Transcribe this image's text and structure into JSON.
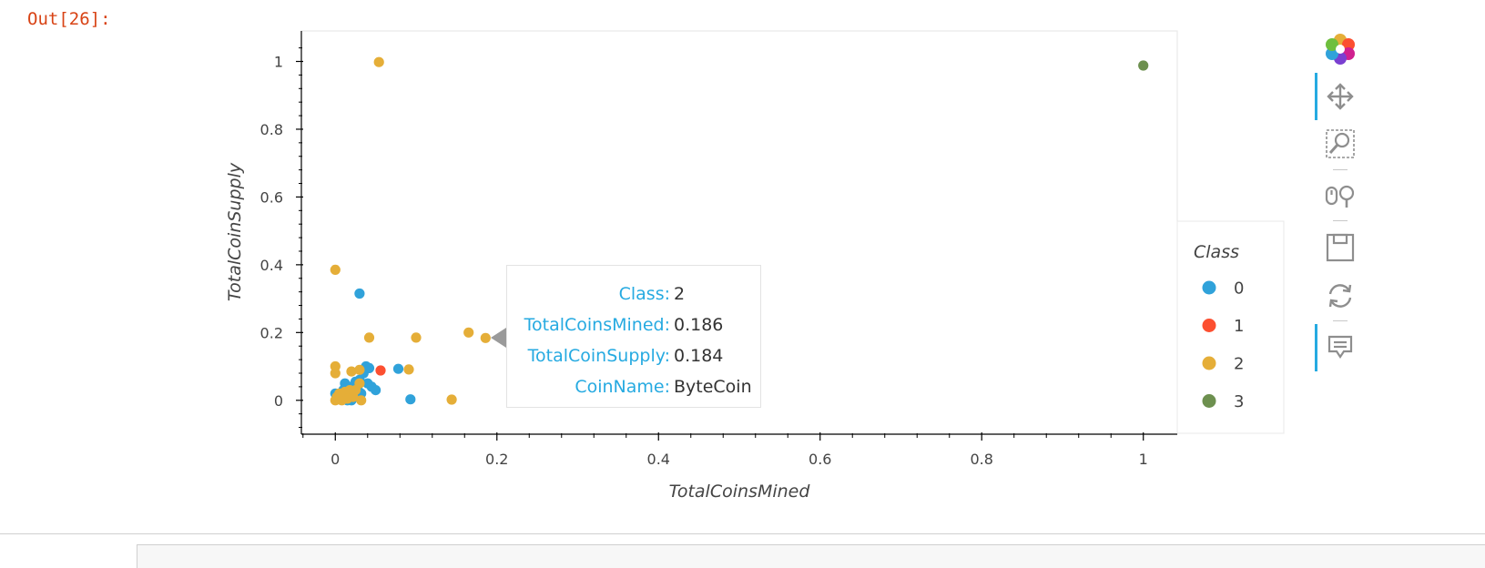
{
  "cell": {
    "prompt": "Out[26]:"
  },
  "chart_data": {
    "type": "scatter",
    "title": "",
    "xlabel": "TotalCoinsMined",
    "ylabel": "TotalCoinSupply",
    "xlim": [
      -0.042,
      1.042
    ],
    "ylim": [
      -0.1,
      1.09
    ],
    "xticks": [
      0,
      0.2,
      0.4,
      0.6,
      0.8,
      1
    ],
    "yticks": [
      0,
      0.2,
      0.4,
      0.6,
      0.8,
      1
    ],
    "xtick_labels": [
      "0",
      "0.2",
      "0.4",
      "0.6",
      "0.8",
      "1"
    ],
    "ytick_labels": [
      "0",
      "0.2",
      "0.4",
      "0.6",
      "0.8",
      "1"
    ],
    "grid": false,
    "legend": {
      "title": "Class",
      "placement": "right"
    },
    "series": [
      {
        "name": "0",
        "color": "#30a2da",
        "points": [
          [
            0.0,
            0.02
          ],
          [
            0.005,
            0.01
          ],
          [
            0.01,
            0.03
          ],
          [
            0.012,
            0.05
          ],
          [
            0.015,
            0.0
          ],
          [
            0.018,
            0.02
          ],
          [
            0.02,
            0.04
          ],
          [
            0.022,
            0.01
          ],
          [
            0.025,
            0.055
          ],
          [
            0.028,
            0.03
          ],
          [
            0.03,
            0.06
          ],
          [
            0.032,
            0.02
          ],
          [
            0.035,
            0.08
          ],
          [
            0.038,
            0.1
          ],
          [
            0.04,
            0.05
          ],
          [
            0.042,
            0.095
          ],
          [
            0.045,
            0.04
          ],
          [
            0.05,
            0.03
          ],
          [
            0.02,
            0.0
          ],
          [
            0.03,
            0.315
          ],
          [
            0.078,
            0.093
          ],
          [
            0.093,
            0.003
          ]
        ]
      },
      {
        "name": "1",
        "color": "#fc4f30",
        "points": [
          [
            0.056,
            0.088
          ]
        ]
      },
      {
        "name": "2",
        "color": "#e5ae38",
        "points": [
          [
            0.0,
            0.385
          ],
          [
            0.054,
            0.998
          ],
          [
            0.0,
            0.1
          ],
          [
            0.0,
            0.08
          ],
          [
            0.0,
            0.0
          ],
          [
            0.002,
            0.01
          ],
          [
            0.005,
            0.02
          ],
          [
            0.008,
            0.0
          ],
          [
            0.01,
            0.015
          ],
          [
            0.012,
            0.025
          ],
          [
            0.015,
            0.005
          ],
          [
            0.018,
            0.03
          ],
          [
            0.02,
            0.02
          ],
          [
            0.022,
            0.01
          ],
          [
            0.025,
            0.03
          ],
          [
            0.02,
            0.085
          ],
          [
            0.03,
            0.09
          ],
          [
            0.03,
            0.05
          ],
          [
            0.032,
            0.0
          ],
          [
            0.042,
            0.185
          ],
          [
            0.091,
            0.091
          ],
          [
            0.1,
            0.185
          ],
          [
            0.144,
            0.002
          ],
          [
            0.165,
            0.2
          ],
          [
            0.186,
            0.184
          ]
        ]
      },
      {
        "name": "3",
        "color": "#6d904f",
        "points": [
          [
            1.0,
            0.988
          ]
        ]
      }
    ]
  },
  "tooltip": {
    "rows": [
      {
        "key": "Class:",
        "value": "2"
      },
      {
        "key": "TotalCoinsMined:",
        "value": "0.186"
      },
      {
        "key": "TotalCoinSupply:",
        "value": "0.184"
      },
      {
        "key": "CoinName:",
        "value": "ByteCoin"
      }
    ]
  },
  "toolbar": {
    "tools": [
      {
        "icon": "bokeh-logo-icon",
        "active": false
      },
      {
        "icon": "pan-icon",
        "active": true
      },
      {
        "icon": "box-zoom-icon",
        "active": false
      },
      {
        "icon": "wheel-zoom-icon",
        "active": false
      },
      {
        "icon": "save-icon",
        "active": false
      },
      {
        "icon": "reset-icon",
        "active": false
      },
      {
        "icon": "hover-icon",
        "active": true
      }
    ]
  }
}
